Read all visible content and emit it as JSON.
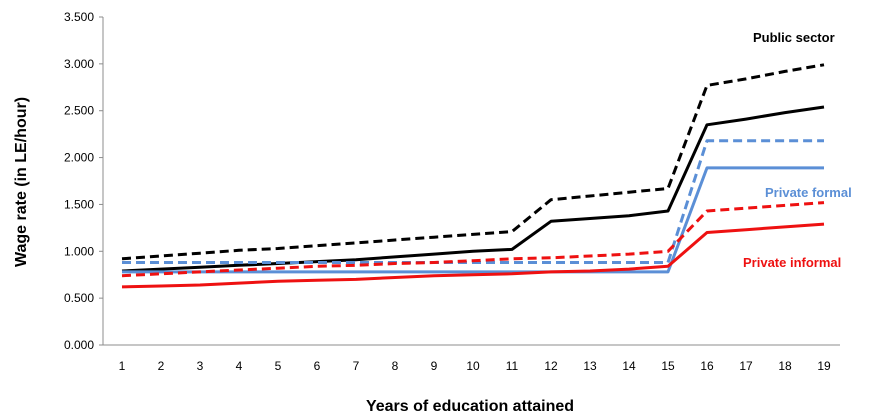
{
  "chart_data": {
    "type": "line",
    "xlabel": "Years of education attained",
    "ylabel": "Wage rate (in LE/hour)",
    "x": [
      1,
      2,
      3,
      4,
      5,
      6,
      7,
      8,
      9,
      10,
      11,
      12,
      13,
      14,
      15,
      16,
      17,
      18,
      19
    ],
    "x_tick_labels": [
      "1",
      "2",
      "3",
      "4",
      "5",
      "6",
      "7",
      "8",
      "9",
      "10",
      "11",
      "12",
      "13",
      "14",
      "15",
      "16",
      "17",
      "18",
      "19"
    ],
    "ylim": [
      0,
      3.5
    ],
    "y_ticks": [
      0,
      0.5,
      1.0,
      1.5,
      2.0,
      2.5,
      3.0,
      3.5
    ],
    "y_tick_labels": [
      "0.000",
      "0.500",
      "1.000",
      "1.500",
      "2.000",
      "2.500",
      "3.000",
      "3.500"
    ],
    "grid": false,
    "annotations": [
      {
        "text": "Public sector",
        "color": "#000000"
      },
      {
        "text": "Private  formal",
        "color": "#5B8FD6"
      },
      {
        "text": "Private informal",
        "color": "#EE1111"
      }
    ],
    "series": [
      {
        "color": "#000000",
        "dashed": true,
        "values": [
          0.92,
          0.95,
          0.98,
          1.01,
          1.03,
          1.06,
          1.09,
          1.12,
          1.15,
          1.18,
          1.21,
          1.55,
          1.59,
          1.63,
          1.67,
          2.77,
          2.84,
          2.92,
          2.99
        ]
      },
      {
        "color": "#000000",
        "dashed": false,
        "values": [
          0.79,
          0.81,
          0.83,
          0.85,
          0.87,
          0.89,
          0.91,
          0.94,
          0.97,
          1.0,
          1.02,
          1.32,
          1.35,
          1.38,
          1.43,
          2.35,
          2.41,
          2.48,
          2.54
        ]
      },
      {
        "color": "#5B8FD6",
        "dashed": true,
        "values": [
          0.88,
          0.88,
          0.88,
          0.88,
          0.88,
          0.88,
          0.88,
          0.88,
          0.88,
          0.88,
          0.88,
          0.88,
          0.88,
          0.88,
          0.88,
          2.18,
          2.18,
          2.18,
          2.18
        ]
      },
      {
        "color": "#5B8FD6",
        "dashed": false,
        "values": [
          0.78,
          0.78,
          0.78,
          0.78,
          0.78,
          0.78,
          0.78,
          0.78,
          0.78,
          0.78,
          0.78,
          0.78,
          0.78,
          0.78,
          0.78,
          1.89,
          1.89,
          1.89,
          1.89
        ]
      },
      {
        "color": "#EE1111",
        "dashed": true,
        "values": [
          0.74,
          0.76,
          0.78,
          0.8,
          0.82,
          0.84,
          0.85,
          0.87,
          0.88,
          0.9,
          0.92,
          0.93,
          0.95,
          0.97,
          1.0,
          1.43,
          1.46,
          1.49,
          1.52
        ]
      },
      {
        "color": "#EE1111",
        "dashed": false,
        "values": [
          0.62,
          0.63,
          0.64,
          0.66,
          0.68,
          0.69,
          0.7,
          0.72,
          0.74,
          0.75,
          0.76,
          0.78,
          0.79,
          0.81,
          0.84,
          1.2,
          1.23,
          1.26,
          1.29
        ]
      }
    ]
  }
}
